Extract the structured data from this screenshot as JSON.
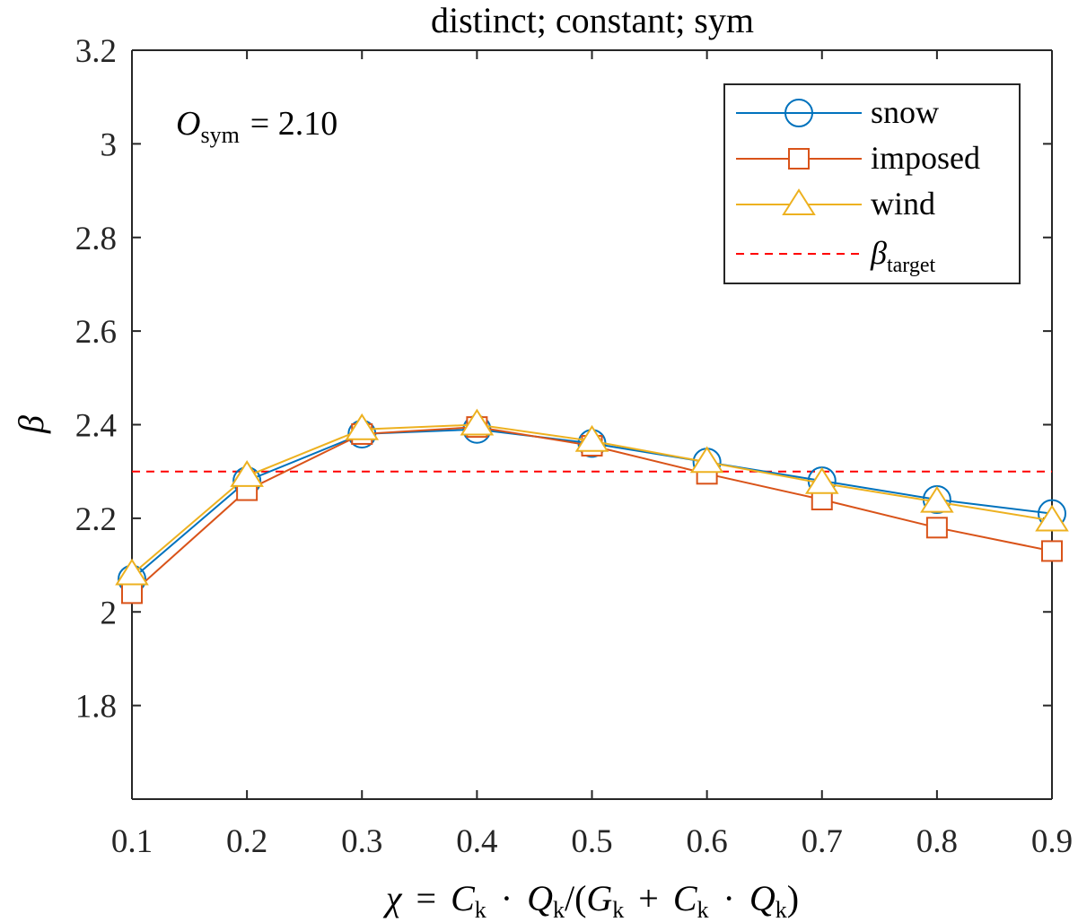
{
  "chart_data": {
    "type": "line",
    "title": "distinct; constant; sym",
    "xlabel_parts": {
      "chi": "χ",
      "eq": "=",
      "C": "C",
      "k": "k",
      "dot": "·",
      "Q": "Q",
      "slash": "/(",
      "G": "G",
      "plus": "+",
      "close": ")"
    },
    "ylabel": "β",
    "x": [
      0.1,
      0.2,
      0.3,
      0.4,
      0.5,
      0.6,
      0.7,
      0.8,
      0.9
    ],
    "xlim": [
      0.1,
      0.9
    ],
    "ylim": [
      1.6,
      3.2
    ],
    "xticks": [
      "0.1",
      "0.2",
      "0.3",
      "0.4",
      "0.5",
      "0.6",
      "0.7",
      "0.8",
      "0.9"
    ],
    "yticks": [
      "1.8",
      "2",
      "2.2",
      "2.4",
      "2.6",
      "2.8",
      "3",
      "3.2"
    ],
    "ytick_values": [
      1.8,
      2.0,
      2.2,
      2.4,
      2.6,
      2.8,
      3.0,
      3.2
    ],
    "grid": false,
    "legend_position": "top-right",
    "annotation": {
      "O": "O",
      "sub": "sym",
      "rest": "= 2.10"
    },
    "series": [
      {
        "name": "snow",
        "color": "#0072bd",
        "marker": "circle",
        "values": [
          2.07,
          2.28,
          2.38,
          2.39,
          2.36,
          2.32,
          2.28,
          2.24,
          2.21
        ]
      },
      {
        "name": "imposed",
        "color": "#d95319",
        "marker": "square",
        "values": [
          2.04,
          2.26,
          2.38,
          2.395,
          2.355,
          2.295,
          2.24,
          2.18,
          2.13
        ]
      },
      {
        "name": "wind",
        "color": "#edb120",
        "marker": "triangle",
        "values": [
          2.08,
          2.29,
          2.39,
          2.4,
          2.365,
          2.32,
          2.275,
          2.235,
          2.195
        ]
      }
    ],
    "reference_line": {
      "symbol": "β",
      "sub": "target",
      "value": 2.3,
      "color": "#ff0000",
      "style": "dashed"
    }
  }
}
